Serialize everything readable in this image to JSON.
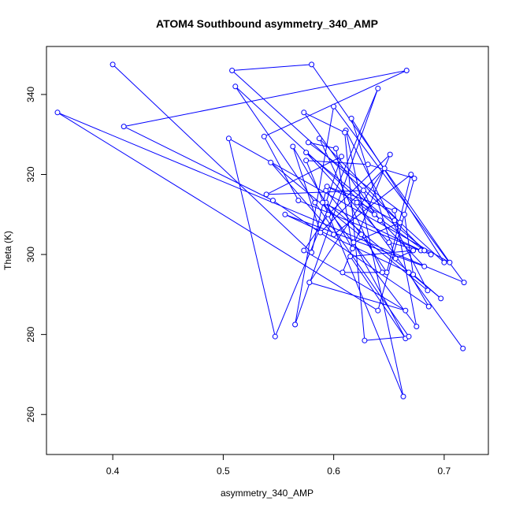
{
  "chart_data": {
    "type": "line",
    "title": "ATOM4 Southbound asymmetry_340_AMP",
    "xlabel": "asymmetry_340_AMP",
    "ylabel": "Theta (K)",
    "xlim": [
      0.34,
      0.74
    ],
    "ylim": [
      250,
      352
    ],
    "xticks": [
      "0.4",
      "0.5",
      "0.6",
      "0.7"
    ],
    "yticks": [
      "260",
      "280",
      "300",
      "320",
      "340"
    ],
    "grid": false,
    "legend": "none",
    "color": "#0000ff",
    "series": [
      {
        "markers": "open-circle",
        "points": [
          [
            0.4,
            347.5
          ],
          [
            0.58,
            300.5
          ],
          [
            0.593,
            316.0
          ],
          [
            0.625,
            305.0
          ],
          [
            0.648,
            295.5
          ],
          [
            0.67,
            320.0
          ],
          [
            0.6,
            305.0
          ],
          [
            0.543,
            323.0
          ],
          [
            0.685,
            291.0
          ],
          [
            0.611,
            331.0
          ],
          [
            0.663,
            264.5
          ],
          [
            0.575,
            323.5
          ],
          [
            0.631,
            322.5
          ],
          [
            0.673,
            319.0
          ],
          [
            0.64,
            286.0
          ],
          [
            0.35,
            335.5
          ],
          [
            0.718,
            293.0
          ],
          [
            0.6,
            337.0
          ],
          [
            0.565,
            282.5
          ],
          [
            0.64,
            341.5
          ],
          [
            0.547,
            279.5
          ],
          [
            0.505,
            329.0
          ],
          [
            0.705,
            298.0
          ],
          [
            0.58,
            347.5
          ],
          [
            0.508,
            346.0
          ],
          [
            0.7,
            298.0
          ],
          [
            0.616,
            334.0
          ],
          [
            0.656,
            299.0
          ],
          [
            0.672,
            301.0
          ],
          [
            0.615,
            299.5
          ],
          [
            0.665,
            279.0
          ],
          [
            0.618,
            303.0
          ],
          [
            0.66,
            308.0
          ],
          [
            0.587,
            329.0
          ],
          [
            0.644,
            295.5
          ],
          [
            0.608,
            295.5
          ],
          [
            0.651,
            325.0
          ],
          [
            0.595,
            310.0
          ],
          [
            0.573,
            301.0
          ],
          [
            0.665,
            286.0
          ],
          [
            0.578,
            293.0
          ],
          [
            0.646,
            321.5
          ],
          [
            0.588,
            305.5
          ],
          [
            0.563,
            327.0
          ],
          [
            0.617,
            301.5
          ],
          [
            0.602,
            326.5
          ],
          [
            0.577,
            328.0
          ],
          [
            0.664,
            310.0
          ],
          [
            0.672,
            295.0
          ],
          [
            0.697,
            289.0
          ],
          [
            0.593,
            313.0
          ],
          [
            0.607,
            324.5
          ],
          [
            0.539,
            315.0
          ],
          [
            0.627,
            316.0
          ],
          [
            0.637,
            310.0
          ],
          [
            0.511,
            342.0
          ],
          [
            0.583,
            313.0
          ],
          [
            0.668,
            279.5
          ],
          [
            0.628,
            278.5
          ],
          [
            0.61,
            330.5
          ],
          [
            0.573,
            335.5
          ],
          [
            0.642,
            308.5
          ],
          [
            0.682,
            297.0
          ],
          [
            0.556,
            310.0
          ],
          [
            0.668,
            295.5
          ],
          [
            0.686,
            287.0
          ],
          [
            0.545,
            313.5
          ],
          [
            0.41,
            332.0
          ],
          [
            0.666,
            346.0
          ],
          [
            0.537,
            329.5
          ],
          [
            0.568,
            313.5
          ],
          [
            0.688,
            300.0
          ],
          [
            0.575,
            325.5
          ],
          [
            0.65,
            303.0
          ],
          [
            0.679,
            301.0
          ],
          [
            0.59,
            313.0
          ],
          [
            0.675,
            282.0
          ],
          [
            0.655,
            311.0
          ],
          [
            0.594,
            317.0
          ],
          [
            0.655,
            308.5
          ],
          [
            0.682,
            301.0
          ],
          [
            0.621,
            313.0
          ],
          [
            0.717,
            276.5
          ]
        ]
      }
    ]
  }
}
